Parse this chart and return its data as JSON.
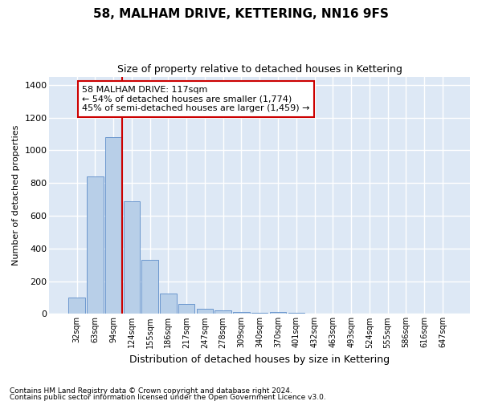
{
  "title": "58, MALHAM DRIVE, KETTERING, NN16 9FS",
  "subtitle": "Size of property relative to detached houses in Kettering",
  "xlabel": "Distribution of detached houses by size in Kettering",
  "ylabel": "Number of detached properties",
  "categories": [
    "32sqm",
    "63sqm",
    "94sqm",
    "124sqm",
    "155sqm",
    "186sqm",
    "217sqm",
    "247sqm",
    "278sqm",
    "309sqm",
    "340sqm",
    "370sqm",
    "401sqm",
    "432sqm",
    "463sqm",
    "493sqm",
    "524sqm",
    "555sqm",
    "586sqm",
    "616sqm",
    "647sqm"
  ],
  "values": [
    100,
    840,
    1080,
    690,
    330,
    125,
    60,
    33,
    22,
    14,
    7,
    14,
    7,
    0,
    0,
    0,
    0,
    0,
    0,
    0,
    0
  ],
  "bar_color": "#b8cfe8",
  "bar_edge_color": "#5b8cc8",
  "property_line_color": "#cc0000",
  "annotation_text": "58 MALHAM DRIVE: 117sqm\n← 54% of detached houses are smaller (1,774)\n45% of semi-detached houses are larger (1,459) →",
  "annotation_box_color": "#ffffff",
  "annotation_box_edge_color": "#cc0000",
  "ylim": [
    0,
    1450
  ],
  "yticks": [
    0,
    200,
    400,
    600,
    800,
    1000,
    1200,
    1400
  ],
  "background_color": "#dde8f5",
  "grid_color": "#ffffff",
  "footer_line1": "Contains HM Land Registry data © Crown copyright and database right 2024.",
  "footer_line2": "Contains public sector information licensed under the Open Government Licence v3.0."
}
